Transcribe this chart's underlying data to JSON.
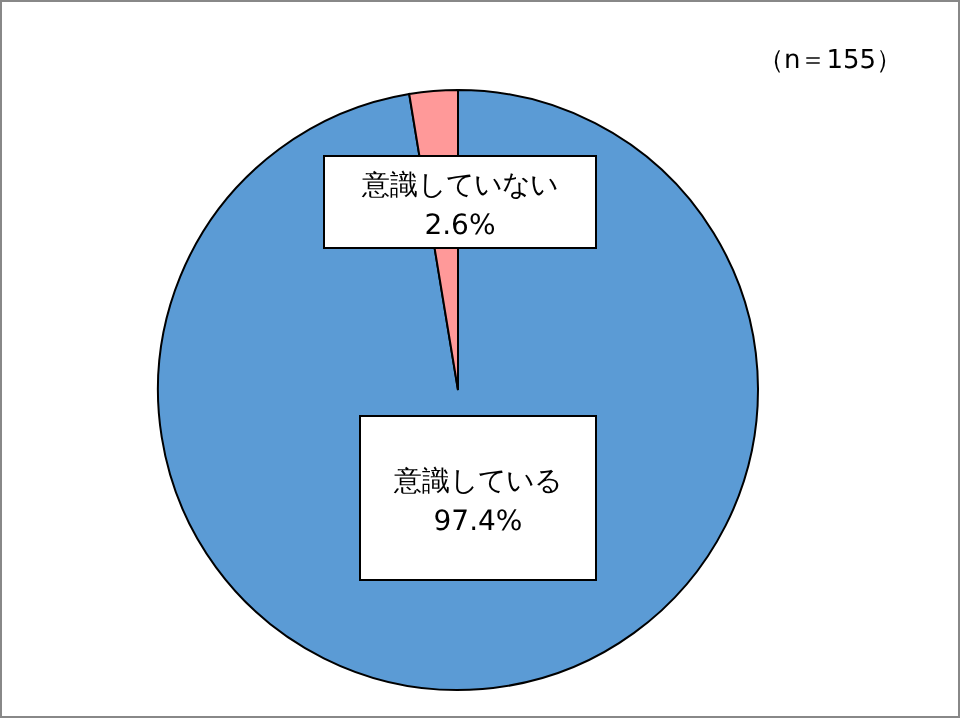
{
  "chart_data": {
    "type": "pie",
    "categories": [
      "意識している",
      "意識していない"
    ],
    "values": [
      97.4,
      2.6
    ],
    "value_labels": [
      "97.4%",
      "2.6%"
    ],
    "colors": [
      "#5b9bd5",
      "#ff9999"
    ],
    "annotations": [
      "（n＝155）"
    ]
  }
}
